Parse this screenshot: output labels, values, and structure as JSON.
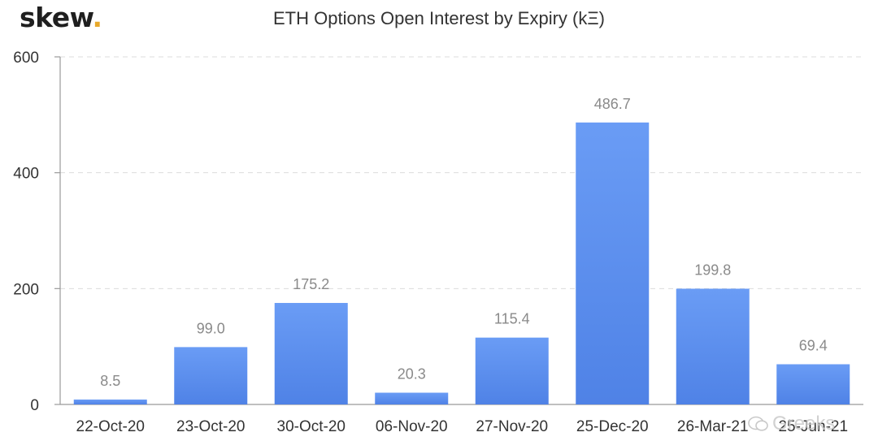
{
  "logo": {
    "text": "skew",
    "dot": ".",
    "dot_color": "#e8a92b"
  },
  "watermark": "Greeks",
  "chart_data": {
    "type": "bar",
    "title": "ETH Options Open Interest by Expiry (kΞ)",
    "xlabel": "",
    "ylabel": "",
    "ylim": [
      0,
      600
    ],
    "yticks": [
      0,
      200,
      400,
      600
    ],
    "grid": true,
    "categories": [
      "22-Oct-20",
      "23-Oct-20",
      "30-Oct-20",
      "06-Nov-20",
      "27-Nov-20",
      "25-Dec-20",
      "26-Mar-21",
      "25-Jun-21"
    ],
    "values": [
      8.5,
      99.0,
      175.2,
      20.3,
      115.4,
      486.7,
      199.8,
      69.4
    ],
    "value_labels": [
      "8.5",
      "99.0",
      "175.2",
      "20.3",
      "115.4",
      "486.7",
      "199.8",
      "69.4"
    ],
    "bar_color_top": "#6a9cf5",
    "bar_color_bottom": "#4f82e6"
  }
}
